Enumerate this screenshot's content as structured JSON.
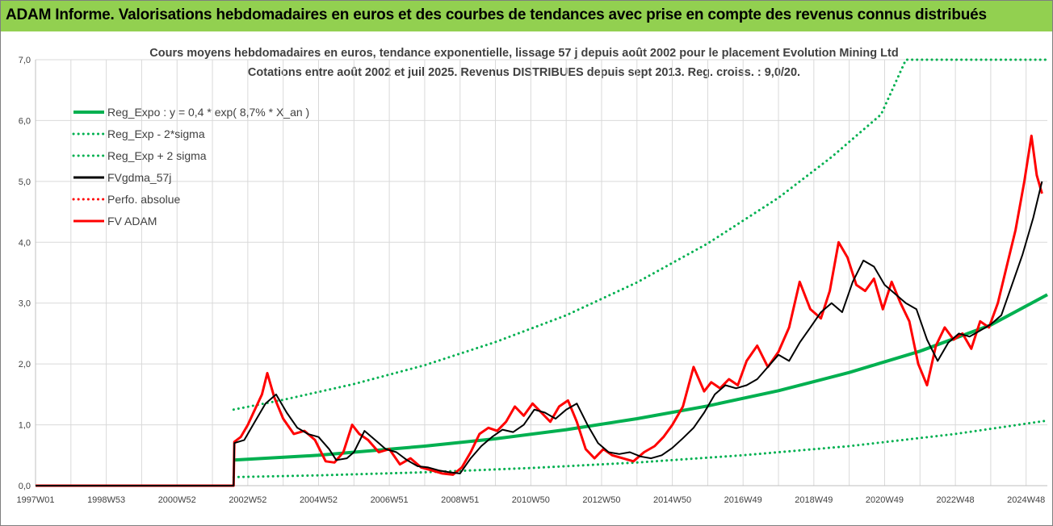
{
  "banner": {
    "title": "ADAM Informe. Valorisations hebdomadaires en euros et des courbes de tendances avec prise en compte des revenus connus distribués"
  },
  "colors": {
    "banner": "#92d050",
    "reg_expo": "#00b050",
    "fv_gdma": "#000000",
    "fv_adam": "#ff0000",
    "perfo_absolue": "#ff0000",
    "grid": "#d9d9d9"
  },
  "chart_data": {
    "type": "line",
    "title": "Cours moyens hebdomadaires en euros, tendance exponentielle, lissage 57 j depuis août 2002 pour le placement Evolution Mining Ltd",
    "subtitle": "Cotations entre août 2002 et juil 2025. Revenus DISTRIBUES depuis sept 2013. Reg. croiss. : 9,0/20.",
    "xlabel": "",
    "ylabel": "",
    "ylim": [
      0,
      7
    ],
    "xlim": [
      1997.0,
      2025.6
    ],
    "grid": true,
    "legend_position": "top-left",
    "y_ticks": [
      "0,0",
      "1,0",
      "2,0",
      "3,0",
      "4,0",
      "5,0",
      "6,0",
      "7,0"
    ],
    "x_ticks": [
      "1997W01",
      "1998W53",
      "2000W52",
      "2002W52",
      "2004W52",
      "2006W51",
      "2008W51",
      "2010W50",
      "2012W50",
      "2014W50",
      "2016W49",
      "2018W49",
      "2020W49",
      "2022W48",
      "2024W48"
    ],
    "x_tick_positions": [
      1997.0,
      1999.0,
      2001.0,
      2003.0,
      2005.0,
      2007.0,
      2009.0,
      2011.0,
      2013.0,
      2015.0,
      2017.0,
      2019.0,
      2021.0,
      2023.0,
      2025.0
    ],
    "series": [
      {
        "name": "Reg_Expo : y = 0,4 * exp( 8,7% *  X_an )",
        "color": "#00b050",
        "style": "solid",
        "x": [
          2002.6,
          2005,
          2008,
          2010,
          2012,
          2014,
          2016,
          2018,
          2020,
          2022,
          2024,
          2025.6
        ],
        "y": [
          0.42,
          0.5,
          0.65,
          0.77,
          0.92,
          1.1,
          1.31,
          1.56,
          1.86,
          2.21,
          2.64,
          3.14
        ]
      },
      {
        "name": "Reg_Exp - 2*sigma",
        "color": "#00b050",
        "style": "dotted",
        "x": [
          2002.6,
          2005,
          2008,
          2011,
          2014,
          2017,
          2020,
          2023,
          2025.6
        ],
        "y": [
          0.14,
          0.17,
          0.22,
          0.29,
          0.38,
          0.5,
          0.65,
          0.85,
          1.07
        ]
      },
      {
        "name": "Reg_Exp + 2 sigma",
        "color": "#00b050",
        "style": "dotted",
        "x": [
          2002.6,
          2004,
          2006,
          2008,
          2010,
          2012,
          2014,
          2016,
          2018,
          2019.5,
          2020.9,
          2021.6,
          2025.6
        ],
        "y": [
          1.25,
          1.41,
          1.67,
          1.98,
          2.36,
          2.8,
          3.34,
          3.98,
          4.73,
          5.4,
          6.1,
          7.0,
          7.0
        ]
      },
      {
        "name": "FVgdma_57j",
        "color": "#000000",
        "style": "solid",
        "x": [
          1997.0,
          2002.6,
          2002.62,
          2002.9,
          2003.2,
          2003.5,
          2003.8,
          2004.1,
          2004.4,
          2004.7,
          2005.0,
          2005.3,
          2005.5,
          2005.8,
          2006.0,
          2006.3,
          2006.6,
          2006.9,
          2007.2,
          2007.5,
          2007.8,
          2008.1,
          2008.4,
          2008.7,
          2009.0,
          2009.3,
          2009.6,
          2009.9,
          2010.2,
          2010.5,
          2010.8,
          2011.1,
          2011.4,
          2011.7,
          2012.0,
          2012.3,
          2012.6,
          2012.9,
          2013.2,
          2013.5,
          2013.8,
          2014.1,
          2014.4,
          2014.7,
          2015.0,
          2015.3,
          2015.6,
          2015.9,
          2016.2,
          2016.5,
          2016.8,
          2017.1,
          2017.4,
          2017.7,
          2018.0,
          2018.3,
          2018.6,
          2018.9,
          2019.2,
          2019.5,
          2019.8,
          2020.1,
          2020.4,
          2020.7,
          2021.0,
          2021.3,
          2021.6,
          2021.9,
          2022.2,
          2022.5,
          2022.8,
          2023.1,
          2023.4,
          2023.7,
          2024.0,
          2024.3,
          2024.6,
          2024.9,
          2025.2,
          2025.45
        ],
        "y": [
          0.0,
          0.0,
          0.7,
          0.75,
          1.05,
          1.35,
          1.5,
          1.2,
          0.95,
          0.85,
          0.8,
          0.6,
          0.42,
          0.45,
          0.55,
          0.9,
          0.75,
          0.6,
          0.55,
          0.42,
          0.32,
          0.3,
          0.25,
          0.22,
          0.2,
          0.45,
          0.65,
          0.8,
          0.92,
          0.88,
          1.0,
          1.25,
          1.2,
          1.1,
          1.25,
          1.35,
          1.0,
          0.7,
          0.55,
          0.52,
          0.55,
          0.48,
          0.45,
          0.5,
          0.62,
          0.78,
          0.95,
          1.2,
          1.5,
          1.65,
          1.6,
          1.65,
          1.75,
          1.95,
          2.15,
          2.05,
          2.35,
          2.6,
          2.85,
          3.0,
          2.85,
          3.35,
          3.7,
          3.6,
          3.3,
          3.15,
          3.0,
          2.9,
          2.4,
          2.05,
          2.35,
          2.5,
          2.45,
          2.55,
          2.65,
          2.8,
          3.3,
          3.8,
          4.4,
          5.0
        ]
      },
      {
        "name": "Perfo. absolue",
        "color": "#ff0000",
        "style": "dotted",
        "x": [],
        "y": []
      },
      {
        "name": "FV ADAM",
        "color": "#ff0000",
        "style": "solid",
        "x": [
          1997.0,
          2002.6,
          2002.62,
          2002.8,
          2003.0,
          2003.2,
          2003.4,
          2003.55,
          2003.75,
          2004.0,
          2004.3,
          2004.6,
          2004.9,
          2005.2,
          2005.45,
          2005.7,
          2005.95,
          2006.15,
          2006.4,
          2006.7,
          2007.0,
          2007.3,
          2007.6,
          2007.9,
          2008.2,
          2008.5,
          2008.8,
          2009.05,
          2009.3,
          2009.55,
          2009.8,
          2010.05,
          2010.3,
          2010.55,
          2010.8,
          2011.05,
          2011.3,
          2011.55,
          2011.8,
          2012.05,
          2012.3,
          2012.55,
          2012.8,
          2013.05,
          2013.3,
          2013.6,
          2013.9,
          2014.2,
          2014.5,
          2014.75,
          2015.0,
          2015.3,
          2015.6,
          2015.9,
          2016.1,
          2016.35,
          2016.6,
          2016.85,
          2017.1,
          2017.4,
          2017.7,
          2018.0,
          2018.3,
          2018.6,
          2018.9,
          2019.2,
          2019.45,
          2019.7,
          2019.95,
          2020.2,
          2020.45,
          2020.7,
          2020.95,
          2021.2,
          2021.45,
          2021.7,
          2021.95,
          2022.2,
          2022.45,
          2022.7,
          2022.95,
          2023.2,
          2023.45,
          2023.7,
          2023.95,
          2024.2,
          2024.45,
          2024.7,
          2024.95,
          2025.15,
          2025.3,
          2025.45
        ],
        "y": [
          0.0,
          0.0,
          0.72,
          0.8,
          1.0,
          1.25,
          1.5,
          1.85,
          1.45,
          1.1,
          0.85,
          0.9,
          0.75,
          0.4,
          0.38,
          0.55,
          1.0,
          0.85,
          0.75,
          0.55,
          0.6,
          0.35,
          0.45,
          0.3,
          0.25,
          0.2,
          0.18,
          0.3,
          0.55,
          0.85,
          0.95,
          0.9,
          1.05,
          1.3,
          1.15,
          1.35,
          1.2,
          1.05,
          1.3,
          1.4,
          1.05,
          0.6,
          0.45,
          0.6,
          0.5,
          0.45,
          0.4,
          0.55,
          0.65,
          0.8,
          1.0,
          1.3,
          1.95,
          1.55,
          1.7,
          1.6,
          1.75,
          1.65,
          2.05,
          2.3,
          1.95,
          2.2,
          2.6,
          3.35,
          2.9,
          2.75,
          3.2,
          4.0,
          3.75,
          3.3,
          3.2,
          3.4,
          2.9,
          3.35,
          3.0,
          2.7,
          2.0,
          1.65,
          2.3,
          2.6,
          2.4,
          2.5,
          2.25,
          2.7,
          2.6,
          3.0,
          3.6,
          4.2,
          5.0,
          5.75,
          5.1,
          4.8
        ]
      }
    ]
  }
}
